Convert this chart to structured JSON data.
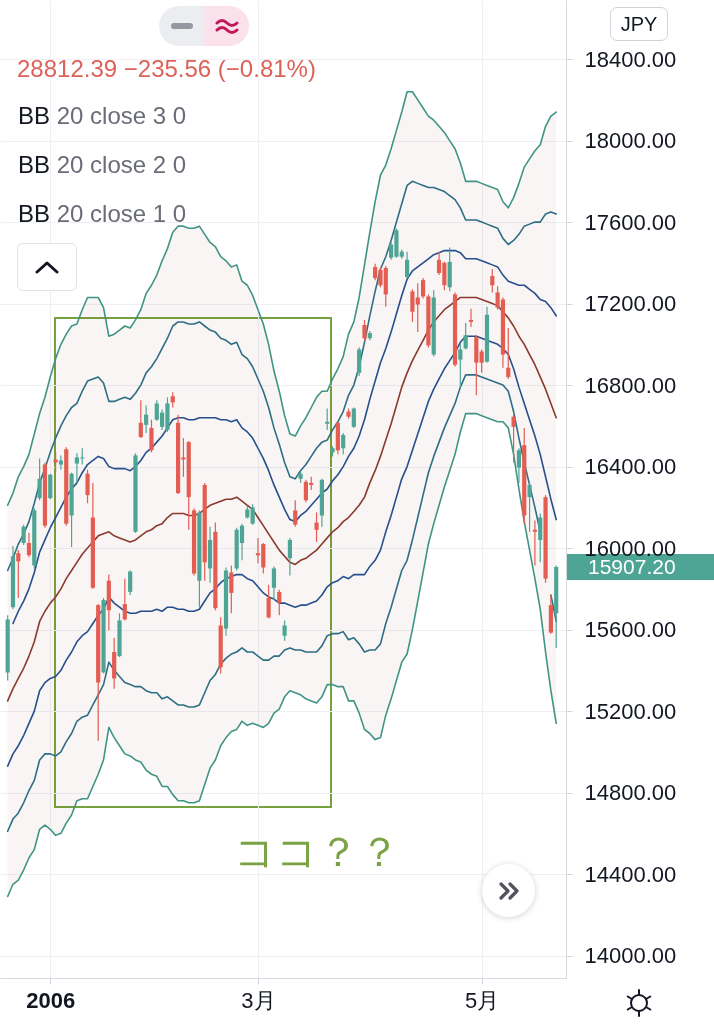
{
  "chart_data": {
    "type": "candlestick",
    "categories": [
      null,
      null,
      null,
      null,
      null,
      null,
      null,
      null,
      "2006",
      null,
      null,
      null,
      null,
      null,
      null,
      null,
      null,
      null,
      null,
      null,
      null,
      null,
      null,
      null,
      null,
      null,
      null,
      null,
      null,
      null,
      null,
      null,
      null,
      null,
      null,
      null,
      null,
      null,
      null,
      null,
      null,
      null,
      null,
      null,
      null,
      null,
      null,
      "3月",
      null,
      null,
      null,
      null,
      null,
      null,
      null,
      null,
      null,
      null,
      null,
      null,
      null,
      null,
      null,
      null,
      null,
      null,
      null,
      null,
      null,
      null,
      null,
      null,
      null,
      null,
      null,
      null,
      null,
      null,
      null,
      null,
      null,
      null,
      null,
      null,
      null,
      null,
      null,
      null,
      null,
      "5月",
      null,
      null,
      null,
      null,
      null,
      null,
      null,
      null,
      null,
      null,
      null,
      null,
      null,
      null
    ],
    "ohlc": [
      [
        15390,
        15670,
        15350,
        15650
      ],
      [
        15710,
        16010,
        15700,
        15960
      ],
      [
        15975,
        15990,
        15755,
        15935
      ],
      [
        16025,
        16115,
        16015,
        16105
      ],
      [
        16025,
        16075,
        15955,
        15965
      ],
      [
        15915,
        16195,
        15900,
        16185
      ],
      [
        16245,
        16440,
        16235,
        16340
      ],
      [
        16410,
        16420,
        16100,
        16110
      ],
      [
        16245,
        16365,
        16240,
        16360
      ],
      [
        16435,
        16470,
        16370,
        16420
      ],
      [
        16410,
        16455,
        16385,
        16430
      ],
      [
        16485,
        16495,
        16110,
        16120
      ],
      [
        16160,
        16370,
        16005,
        16365
      ],
      [
        16415,
        16465,
        16320,
        16445
      ],
      [
        16440,
        16490,
        16410,
        16445
      ],
      [
        16365,
        16385,
        16220,
        16260
      ],
      [
        16150,
        16320,
        15800,
        15805
      ],
      [
        15720,
        15725,
        15055,
        15340
      ],
      [
        15390,
        15755,
        15385,
        15745
      ],
      [
        15840,
        15870,
        15595,
        15695
      ],
      [
        15490,
        15560,
        15310,
        15360
      ],
      [
        15470,
        15680,
        15465,
        15645
      ],
      [
        15725,
        15850,
        15645,
        15650
      ],
      [
        15785,
        15890,
        15770,
        15885
      ],
      [
        16080,
        16465,
        16075,
        16455
      ],
      [
        16615,
        16725,
        16540,
        16545
      ],
      [
        16605,
        16700,
        16565,
        16655
      ],
      [
        16590,
        16630,
        16470,
        16480
      ],
      [
        16630,
        16725,
        16625,
        16710
      ],
      [
        16595,
        16680,
        16580,
        16665
      ],
      [
        16580,
        16740,
        16570,
        16710
      ],
      [
        16745,
        16765,
        16690,
        16715
      ],
      [
        16615,
        16655,
        16265,
        16270
      ],
      [
        16445,
        16540,
        16350,
        16435
      ],
      [
        16520,
        16525,
        16090,
        16250
      ],
      [
        16185,
        16195,
        15865,
        15875
      ],
      [
        15840,
        16185,
        15710,
        16175
      ],
      [
        16310,
        16320,
        15840,
        15930
      ],
      [
        15900,
        16105,
        15830,
        16040
      ],
      [
        16080,
        16125,
        15695,
        15705
      ],
      [
        15620,
        15660,
        15385,
        15415
      ],
      [
        15605,
        15905,
        15570,
        15890
      ],
      [
        15880,
        15915,
        15680,
        15780
      ],
      [
        15900,
        16100,
        15890,
        16090
      ],
      [
        16025,
        16120,
        15940,
        16110
      ],
      [
        16150,
        16205,
        16145,
        16190
      ],
      [
        16120,
        16215,
        16115,
        16200
      ],
      [
        15975,
        16050,
        15925,
        15965
      ],
      [
        16020,
        16025,
        15875,
        15905
      ],
      [
        15755,
        15820,
        15655,
        15660
      ],
      [
        15805,
        15910,
        15745,
        15900
      ],
      [
        15785,
        15795,
        15670,
        15730
      ],
      [
        15570,
        15645,
        15545,
        15620
      ],
      [
        15950,
        16050,
        15865,
        16040
      ],
      [
        16185,
        16235,
        16105,
        16115
      ],
      [
        16340,
        16375,
        16320,
        16365
      ],
      [
        16325,
        16335,
        16225,
        16235
      ],
      [
        16320,
        16350,
        16285,
        16310
      ],
      [
        16125,
        16175,
        16030,
        16090
      ],
      [
        16160,
        16340,
        16105,
        16335
      ],
      [
        16610,
        16685,
        16580,
        16620
      ],
      [
        16470,
        16500,
        16450,
        16490
      ],
      [
        16615,
        16620,
        16460,
        16480
      ],
      [
        16490,
        16565,
        16460,
        16555
      ],
      [
        16670,
        16685,
        16635,
        16645
      ],
      [
        16595,
        16690,
        16590,
        16685
      ],
      [
        16860,
        16985,
        16845,
        16975
      ],
      [
        17095,
        17120,
        17015,
        17030
      ],
      [
        17030,
        17065,
        17020,
        17055
      ],
      [
        17380,
        17395,
        17315,
        17325
      ],
      [
        17365,
        17375,
        17280,
        17290
      ],
      [
        17375,
        17385,
        17185,
        17245
      ],
      [
        17425,
        17500,
        17415,
        17490
      ],
      [
        17430,
        17570,
        17425,
        17560
      ],
      [
        17430,
        17465,
        17420,
        17455
      ],
      [
        17330,
        17455,
        17325,
        17415
      ],
      [
        17260,
        17270,
        17110,
        17160
      ],
      [
        17230,
        17300,
        17060,
        17195
      ],
      [
        17315,
        17325,
        17225,
        17235
      ],
      [
        17235,
        17245,
        16985,
        16995
      ],
      [
        16950,
        17265,
        16940,
        17230
      ],
      [
        17415,
        17455,
        17340,
        17350
      ],
      [
        17400,
        17405,
        17265,
        17290
      ],
      [
        17280,
        17475,
        17260,
        17405
      ],
      [
        17245,
        17255,
        16890,
        16900
      ],
      [
        16925,
        17000,
        16790,
        16975
      ],
      [
        16980,
        17105,
        16975,
        17045
      ],
      [
        17120,
        17175,
        17085,
        17110
      ],
      [
        17035,
        17045,
        16750,
        16910
      ],
      [
        16965,
        16975,
        16860,
        16910
      ],
      [
        16915,
        17185,
        16910,
        17145
      ],
      [
        17335,
        17370,
        17255,
        17290
      ],
      [
        17255,
        17285,
        17170,
        17180
      ],
      [
        17220,
        17230,
        16885,
        16950
      ],
      [
        16885,
        17080,
        16830,
        16840
      ],
      [
        16645,
        16655,
        16420,
        16595
      ],
      [
        16395,
        16490,
        16320,
        16480
      ],
      [
        16505,
        16590,
        16120,
        16160
      ],
      [
        16250,
        16320,
        16080,
        16310
      ],
      [
        16090,
        16135,
        15915,
        16080
      ],
      [
        16040,
        16170,
        15930,
        16150
      ],
      [
        16250,
        16260,
        15830,
        15850
      ],
      [
        15720,
        15770,
        15580,
        15585
      ],
      [
        15680,
        15915,
        15510,
        15907.2
      ]
    ],
    "colors": [
      "#4fa595",
      "#4fa595",
      "#e35d52",
      "#4fa595",
      "#e35d52",
      "#4fa595",
      "#4fa595",
      "#e35d52",
      "#4fa595",
      "#e35d52",
      "#4fa595",
      "#e35d52",
      "#4fa595",
      "#4fa595",
      "#4fa595",
      "#e35d52",
      "#e35d52",
      "#e35d52",
      "#4fa595",
      "#e35d52",
      "#e35d52",
      "#4fa595",
      "#e35d52",
      "#4fa595",
      "#4fa595",
      "#e35d52",
      "#4fa595",
      "#e35d52",
      "#4fa595",
      "#4fa595",
      "#4fa595",
      "#e35d52",
      "#e35d52",
      "#e35d52",
      "#e35d52",
      "#e35d52",
      "#4fa595",
      "#e35d52",
      "#4fa595",
      "#e35d52",
      "#e35d52",
      "#4fa595",
      "#e35d52",
      "#4fa595",
      "#4fa595",
      "#4fa595",
      "#4fa595",
      "#e35d52",
      "#e35d52",
      "#e35d52",
      "#4fa595",
      "#e35d52",
      "#4fa595",
      "#4fa595",
      "#e35d52",
      "#4fa595",
      "#e35d52",
      "#e35d52",
      "#e35d52",
      "#4fa595",
      "#4fa595",
      "#4fa595",
      "#e35d52",
      "#4fa595",
      "#e35d52",
      "#4fa595",
      "#4fa595",
      "#e35d52",
      "#4fa595",
      "#e35d52",
      "#e35d52",
      "#e35d52",
      "#4fa595",
      "#4fa595",
      "#4fa595",
      "#4fa595",
      "#e35d52",
      "#e35d52",
      "#e35d52",
      "#e35d52",
      "#4fa595",
      "#e35d52",
      "#e35d52",
      "#4fa595",
      "#e35d52",
      "#4fa595",
      "#4fa595",
      "#e35d52",
      "#e35d52",
      "#e35d52",
      "#4fa595",
      "#e35d52",
      "#e35d52",
      "#e35d52",
      "#e35d52",
      "#e35d52",
      "#4fa595",
      "#e35d52",
      "#4fa595",
      "#e35d52",
      "#4fa595",
      "#e35d52",
      "#e35d52",
      "#4fa595"
    ],
    "series": [
      {
        "type": "line",
        "color": "#3f9486",
        "values": [
          16210,
          16270,
          16350,
          16400,
          16460,
          16560,
          16660,
          16740,
          16840,
          16930,
          17000,
          17050,
          17090,
          17100,
          17170,
          17230,
          17230,
          17230,
          17180,
          17040,
          17050,
          17070,
          17090,
          17080,
          17120,
          17170,
          17250,
          17290,
          17340,
          17410,
          17470,
          17550,
          17580,
          17580,
          17570,
          17570,
          17580,
          17540,
          17500,
          17480,
          17430,
          17410,
          17380,
          17390,
          17310,
          17290,
          17240,
          17170,
          17100,
          17000,
          16870,
          16770,
          16650,
          16560,
          16550,
          16600,
          16640,
          16690,
          16740,
          16770,
          16770,
          16830,
          16880,
          16940,
          17050,
          17110,
          17230,
          17390,
          17550,
          17700,
          17830,
          17880,
          17960,
          18050,
          18140,
          18240,
          18240,
          18200,
          18160,
          18120,
          18100,
          18070,
          18040,
          18000,
          17960,
          17890,
          17800,
          17800,
          17800,
          17790,
          17780,
          17770,
          17760,
          17700,
          17670,
          17720,
          17790,
          17870,
          17910,
          17950,
          17980,
          18070,
          18120,
          18140
        ]
      },
      {
        "type": "line",
        "color": "#2e6e85",
        "values": [
          15890,
          15950,
          16020,
          16070,
          16130,
          16220,
          16320,
          16390,
          16470,
          16540,
          16600,
          16650,
          16690,
          16710,
          16770,
          16820,
          16830,
          16840,
          16810,
          16720,
          16720,
          16730,
          16740,
          16730,
          16760,
          16800,
          16860,
          16890,
          16930,
          16980,
          17030,
          17090,
          17110,
          17110,
          17100,
          17100,
          17110,
          17090,
          17070,
          17060,
          17030,
          17020,
          17000,
          17010,
          16950,
          16930,
          16890,
          16830,
          16770,
          16690,
          16590,
          16510,
          16420,
          16350,
          16340,
          16380,
          16410,
          16450,
          16490,
          16520,
          16530,
          16580,
          16620,
          16670,
          16750,
          16800,
          16890,
          17010,
          17140,
          17260,
          17370,
          17430,
          17510,
          17600,
          17690,
          17780,
          17800,
          17790,
          17780,
          17770,
          17770,
          17760,
          17750,
          17730,
          17710,
          17670,
          17610,
          17610,
          17610,
          17600,
          17590,
          17580,
          17570,
          17520,
          17490,
          17510,
          17540,
          17580,
          17590,
          17600,
          17600,
          17640,
          17650,
          17640
        ]
      },
      {
        "type": "line",
        "color": "#264f8c",
        "values": [
          null,
          15630,
          15690,
          15740,
          15800,
          15880,
          15980,
          16040,
          16100,
          16150,
          16200,
          16250,
          16290,
          16320,
          16370,
          16410,
          16430,
          16450,
          16440,
          16400,
          16390,
          16390,
          16390,
          16380,
          16400,
          16430,
          16470,
          16490,
          16520,
          16550,
          16590,
          16630,
          16640,
          16640,
          16630,
          16630,
          16640,
          16640,
          16640,
          16640,
          16630,
          16630,
          16620,
          16630,
          16590,
          16570,
          16540,
          16490,
          16440,
          16380,
          16310,
          16250,
          16190,
          16140,
          16130,
          16160,
          16180,
          16210,
          16240,
          16270,
          16290,
          16330,
          16360,
          16400,
          16450,
          16490,
          16550,
          16630,
          16730,
          16820,
          16910,
          16980,
          17060,
          17150,
          17240,
          17320,
          17360,
          17380,
          17400,
          17420,
          17440,
          17450,
          17460,
          17460,
          17460,
          17450,
          17420,
          17420,
          17420,
          17410,
          17400,
          17390,
          17380,
          17340,
          17310,
          17300,
          17290,
          17290,
          17270,
          17250,
          17220,
          17210,
          17180,
          17140
        ]
      },
      {
        "type": "line",
        "color": "#8b3a2e",
        "values": [
          15250,
          15310,
          15360,
          15410,
          15470,
          15540,
          15640,
          15690,
          15730,
          15760,
          15800,
          15850,
          15890,
          15930,
          15970,
          16000,
          16030,
          16060,
          16070,
          16080,
          16060,
          16050,
          16040,
          16030,
          16040,
          16060,
          16080,
          16090,
          16110,
          16120,
          16150,
          16170,
          16170,
          16170,
          16160,
          16160,
          16170,
          16190,
          16210,
          16220,
          16230,
          16240,
          16240,
          16250,
          16230,
          16210,
          16190,
          16150,
          16110,
          16070,
          16030,
          15990,
          15960,
          15930,
          15920,
          15940,
          15950,
          15970,
          15990,
          16020,
          16050,
          16080,
          16100,
          16130,
          16150,
          16180,
          16210,
          16250,
          16320,
          16380,
          16450,
          16530,
          16610,
          16700,
          16790,
          16860,
          16920,
          16970,
          17020,
          17070,
          17110,
          17140,
          17170,
          17190,
          17210,
          17230,
          17230,
          17230,
          17230,
          17220,
          17210,
          17200,
          17190,
          17160,
          17130,
          17090,
          17040,
          17000,
          16950,
          16900,
          16840,
          16780,
          16710,
          16640
        ],
        "lower": [
          14290,
          14350,
          14370,
          14420,
          14480,
          14520,
          14620,
          14640,
          14620,
          14590,
          14600,
          14650,
          14690,
          14760,
          14770,
          14770,
          14830,
          14890,
          14960,
          15120,
          15070,
          15030,
          14990,
          14980,
          14960,
          14950,
          14910,
          14890,
          14880,
          14830,
          14830,
          14790,
          14760,
          14760,
          14750,
          14750,
          14760,
          14840,
          14920,
          14960,
          15030,
          15070,
          15100,
          15110,
          15150,
          15130,
          15140,
          15130,
          15120,
          15140,
          15190,
          15210,
          15270,
          15300,
          15290,
          15280,
          15260,
          15250,
          15240,
          15270,
          15330,
          15330,
          15320,
          15320,
          15250,
          15250,
          15190,
          15110,
          15090,
          15060,
          15070,
          15180,
          15260,
          15350,
          15440,
          15480,
          15600,
          15740,
          15880,
          16020,
          16120,
          16210,
          16300,
          16380,
          16460,
          16570,
          16660,
          16660,
          16660,
          16650,
          16640,
          16630,
          16620,
          16620,
          16590,
          16460,
          16290,
          16130,
          15990,
          15850,
          15700,
          15490,
          15300,
          15140
        ],
        "upper": [
          16210,
          16270,
          16350,
          16400,
          16460,
          16560,
          16660,
          16740,
          16840,
          16930,
          17000,
          17050,
          17090,
          17100,
          17170,
          17230,
          17230,
          17230,
          17180,
          17040,
          17050,
          17070,
          17090,
          17080,
          17120,
          17170,
          17250,
          17290,
          17340,
          17410,
          17470,
          17550,
          17580,
          17580,
          17570,
          17570,
          17580,
          17540,
          17500,
          17480,
          17430,
          17410,
          17380,
          17390,
          17310,
          17290,
          17240,
          17170,
          17100,
          17000,
          16870,
          16770,
          16650,
          16560,
          16550,
          16600,
          16640,
          16690,
          16740,
          16770,
          16770,
          16830,
          16880,
          16940,
          17050,
          17110,
          17230,
          17390,
          17550,
          17700,
          17830,
          17880,
          17960,
          18050,
          18140,
          18240,
          18240,
          18200,
          18160,
          18120,
          18100,
          18070,
          18040,
          18000,
          17960,
          17890,
          17800,
          17800,
          17800,
          17790,
          17780,
          17770,
          17760,
          17700,
          17670,
          17720,
          17790,
          17870,
          17910,
          17950,
          17980,
          18070,
          18120,
          18140
        ]
      },
      {
        "type": "line",
        "color": "#264f8c",
        "values": [
          14930,
          14990,
          15030,
          15080,
          15140,
          15200,
          15300,
          15340,
          15360,
          15370,
          15400,
          15450,
          15490,
          15540,
          15570,
          15590,
          15630,
          15670,
          15700,
          15760,
          15730,
          15710,
          15690,
          15680,
          15680,
          15690,
          15690,
          15690,
          15700,
          15690,
          15710,
          15710,
          15700,
          15700,
          15690,
          15690,
          15700,
          15740,
          15780,
          15800,
          15830,
          15850,
          15860,
          15870,
          15870,
          15850,
          15840,
          15810,
          15780,
          15760,
          15750,
          15730,
          15730,
          15720,
          15710,
          15720,
          15720,
          15730,
          15740,
          15770,
          15810,
          15830,
          15840,
          15860,
          15850,
          15870,
          15870,
          15870,
          15910,
          15940,
          15990,
          16080,
          16160,
          16250,
          16340,
          16400,
          16480,
          16560,
          16640,
          16720,
          16780,
          16830,
          16880,
          16920,
          16960,
          17010,
          17040,
          17040,
          17040,
          17030,
          17020,
          17010,
          17000,
          16980,
          16950,
          16880,
          16790,
          16710,
          16630,
          16550,
          16460,
          16350,
          16240,
          16140
        ]
      },
      {
        "type": "line",
        "color": "#2e6e85",
        "values": [
          14610,
          14670,
          14700,
          14750,
          14810,
          14860,
          14960,
          14990,
          14990,
          14980,
          15000,
          15050,
          15090,
          15150,
          15170,
          15180,
          15230,
          15280,
          15330,
          15440,
          15400,
          15370,
          15340,
          15330,
          15320,
          15320,
          15300,
          15290,
          15290,
          15260,
          15270,
          15250,
          15230,
          15230,
          15220,
          15220,
          15230,
          15290,
          15350,
          15380,
          15430,
          15460,
          15480,
          15490,
          15510,
          15490,
          15490,
          15470,
          15450,
          15450,
          15470,
          15470,
          15500,
          15510,
          15500,
          15500,
          15490,
          15490,
          15490,
          15520,
          15570,
          15580,
          15580,
          15590,
          15550,
          15560,
          15530,
          15490,
          15500,
          15500,
          15530,
          15630,
          15710,
          15800,
          15890,
          15940,
          16040,
          16150,
          16260,
          16370,
          16450,
          16520,
          16590,
          16650,
          16710,
          16790,
          16850,
          16850,
          16850,
          16840,
          16830,
          16820,
          16810,
          16800,
          16770,
          16670,
          16540,
          16420,
          16310,
          16200,
          16080,
          null,
          15770,
          15640
        ]
      },
      {
        "type": "line",
        "color": "#3f9486",
        "values": [
          14290,
          14350,
          14370,
          14420,
          14480,
          14520,
          14620,
          14640,
          14620,
          14590,
          14600,
          14650,
          14690,
          14760,
          14770,
          14770,
          14830,
          14890,
          14960,
          15120,
          15070,
          15030,
          14990,
          14980,
          14960,
          14950,
          14910,
          14890,
          14880,
          14830,
          14830,
          14790,
          14760,
          14760,
          14750,
          14750,
          14760,
          14840,
          14920,
          14960,
          15030,
          15070,
          15100,
          15110,
          15150,
          15130,
          15140,
          15130,
          15120,
          15140,
          15190,
          15210,
          15270,
          15300,
          15290,
          15280,
          15260,
          15250,
          15240,
          15270,
          15330,
          15330,
          15320,
          15320,
          15250,
          15250,
          15190,
          15110,
          15090,
          15060,
          15070,
          15180,
          15260,
          15350,
          15440,
          15480,
          15600,
          15740,
          15880,
          16020,
          16120,
          16210,
          16300,
          16380,
          16460,
          16570,
          16660,
          16660,
          16660,
          16650,
          16640,
          16630,
          16620,
          16620,
          16590,
          16460,
          16290,
          16130,
          15990,
          15850,
          15700,
          15490,
          15300,
          15140
        ]
      }
    ],
    "ylim": [
      13890,
      18690
    ],
    "yticks": [
      {
        "value": 14000,
        "label": "14000.00"
      },
      {
        "value": 14400,
        "label": "14400.00"
      },
      {
        "value": 14800,
        "label": "14800.00"
      },
      {
        "value": 15200,
        "label": "15200.00"
      },
      {
        "value": 15600,
        "label": "15600.00"
      },
      {
        "value": 16000,
        "label": "16000.00"
      },
      {
        "value": 16400,
        "label": "16400.00"
      },
      {
        "value": 16800,
        "label": "16800.00"
      },
      {
        "value": 17200,
        "label": "17200.00"
      },
      {
        "value": 17600,
        "label": "17600.00"
      },
      {
        "value": 18000,
        "label": "18000.00"
      },
      {
        "value": 18400,
        "label": "18400.00"
      }
    ],
    "grid": true,
    "annotations": [
      "28812.39 −235.56 (−0.81%)",
      "BB 20 close 3 0",
      "BB 20 close 2 0",
      "BB 20 close 1 0",
      "JPY",
      "ココ？？",
      "15907.20"
    ]
  }
}
